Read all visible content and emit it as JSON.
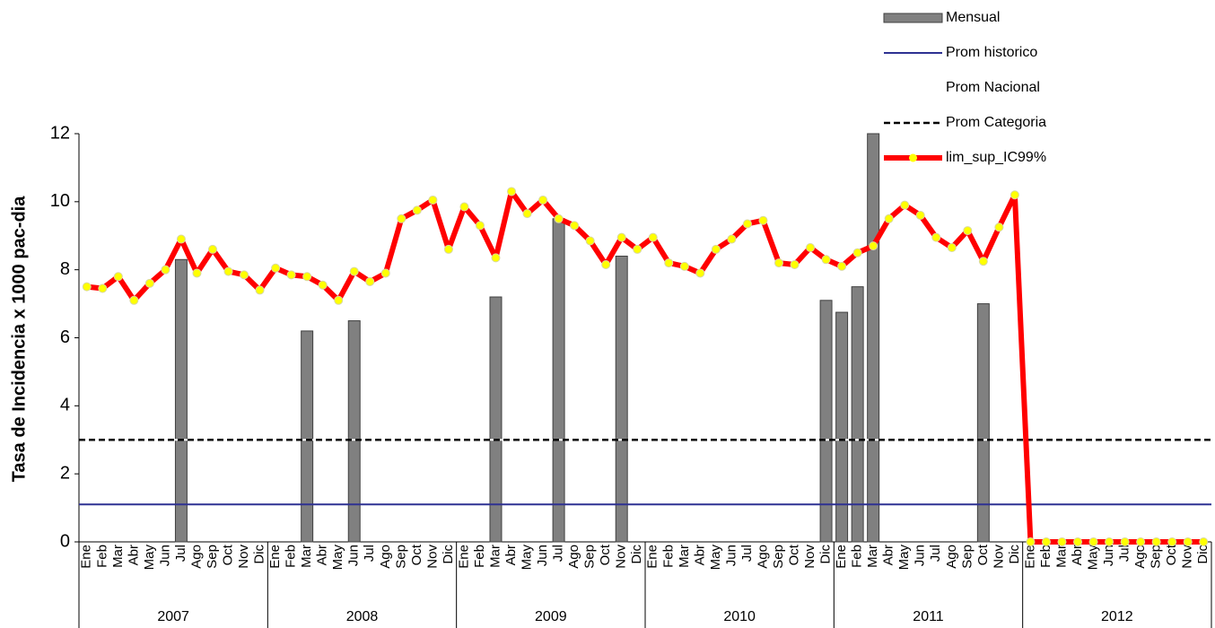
{
  "chart_data": {
    "type": "combo",
    "y_label": "Tasa de Incidencia x 1000 pac-dia",
    "categories": [
      "Ene",
      "Feb",
      "Mar",
      "Abr",
      "May",
      "Jun",
      "Jul",
      "Ago",
      "Sep",
      "Oct",
      "Nov",
      "Dic",
      "Ene",
      "Feb",
      "Mar",
      "Abr",
      "May",
      "Jun",
      "Jul",
      "Ago",
      "Sep",
      "Oct",
      "Nov",
      "Dic",
      "Ene",
      "Feb",
      "Mar",
      "Abr",
      "May",
      "Jun",
      "Jul",
      "Ago",
      "Sep",
      "Oct",
      "Nov",
      "Dic",
      "Ene",
      "Feb",
      "Mar",
      "Abr",
      "May",
      "Jun",
      "Jul",
      "Ago",
      "Sep",
      "Oct",
      "Nov",
      "Dic",
      "Ene",
      "Feb",
      "Mar",
      "Abr",
      "May",
      "Jun",
      "Jul",
      "Ago",
      "Sep",
      "Oct",
      "Nov",
      "Dic",
      "Ene",
      "Feb",
      "Mar",
      "Abr",
      "May",
      "Jun",
      "Jul",
      "Ago",
      "Sep",
      "Oct",
      "Nov",
      "Dic"
    ],
    "groups": [
      "2007",
      "2008",
      "2009",
      "2010",
      "2011",
      "2012"
    ],
    "ylim": [
      0,
      12
    ],
    "yticks": [
      0,
      2,
      4,
      6,
      8,
      10,
      12
    ],
    "series": [
      {
        "name": "Mensual",
        "type": "bar",
        "color": "#808080",
        "values": [
          0,
          0,
          0,
          0,
          0,
          0,
          8.3,
          0,
          0,
          0,
          0,
          0,
          0,
          0,
          6.2,
          0,
          0,
          6.5,
          0,
          0,
          0,
          0,
          0,
          0,
          0,
          0,
          7.2,
          0,
          0,
          0,
          9.5,
          0,
          0,
          0,
          8.4,
          0,
          0,
          0,
          0,
          0,
          0,
          0,
          0,
          0,
          0,
          0,
          0,
          7.1,
          6.75,
          7.5,
          12,
          0,
          0,
          0,
          0,
          0,
          0,
          7.0,
          0,
          0,
          0,
          0,
          0,
          0,
          0,
          0,
          0,
          0,
          0,
          0,
          0,
          0
        ]
      },
      {
        "name": "Prom historico",
        "type": "hline",
        "color": "#2e3192",
        "value": 1.1
      },
      {
        "name": "Prom Nacional",
        "type": "hline",
        "color": "#ffffff",
        "value": 3.0
      },
      {
        "name": "Prom Categoria",
        "type": "hline",
        "color": "#000000",
        "dashed": true,
        "value": 3.0
      },
      {
        "name": "lim_sup_IC99%",
        "type": "line",
        "color": "#ff0000",
        "marker_color": "#ffff00",
        "values": [
          7.5,
          7.45,
          7.8,
          7.1,
          7.6,
          8.0,
          8.9,
          7.9,
          8.6,
          7.95,
          7.85,
          7.4,
          8.05,
          7.85,
          7.8,
          7.55,
          7.1,
          7.95,
          7.65,
          7.9,
          9.5,
          9.75,
          10.05,
          8.6,
          9.85,
          9.3,
          8.35,
          10.3,
          9.65,
          10.05,
          9.5,
          9.3,
          8.85,
          8.15,
          8.95,
          8.6,
          8.95,
          8.2,
          8.1,
          7.9,
          8.6,
          8.9,
          9.35,
          9.45,
          8.2,
          8.15,
          8.65,
          8.3,
          8.1,
          8.5,
          8.7,
          9.5,
          9.9,
          9.6,
          8.95,
          8.65,
          9.15,
          8.25,
          9.25,
          10.2,
          0,
          0,
          0,
          0,
          0,
          0,
          0,
          0,
          0,
          0,
          0,
          0
        ]
      }
    ]
  }
}
